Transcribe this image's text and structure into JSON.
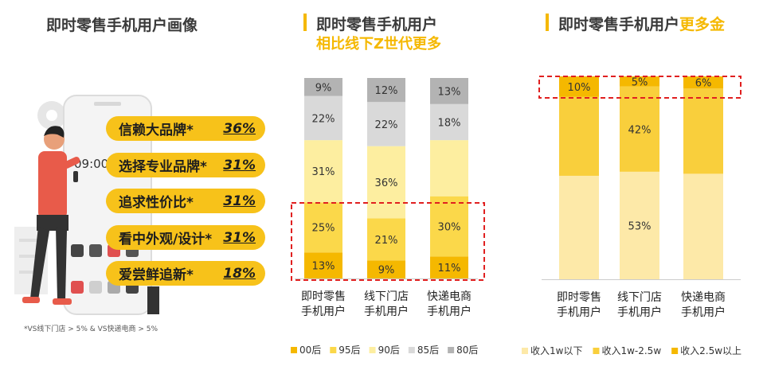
{
  "panel1": {
    "title": "即时零售手机用户画像",
    "phone_time": "09:00",
    "traits": [
      {
        "label": "信赖大品牌*",
        "pct": "36%"
      },
      {
        "label": "选择专业品牌*",
        "pct": "31%"
      },
      {
        "label": "追求性价比*",
        "pct": "31%"
      },
      {
        "label": "看中外观/设计*",
        "pct": "31%"
      },
      {
        "label": "爱尝鲜追新*",
        "pct": "18%"
      }
    ],
    "footnote": "*VS线下门店 > 5% & VS快递电商 > 5%"
  },
  "chart_data": [
    {
      "type": "bar",
      "stacked": true,
      "normalized": true,
      "title": "即时零售手机用户",
      "subtitle": "相比线下Z世代更多",
      "categories": [
        "即时零售\n手机用户",
        "线下门店\n手机用户",
        "快递电商\n手机用户"
      ],
      "series": [
        {
          "name": "00后",
          "color": "#f5b800",
          "values": [
            13,
            9,
            11
          ]
        },
        {
          "name": "95后",
          "color": "#fbd84a",
          "values": [
            25,
            21,
            30
          ]
        },
        {
          "name": "90后",
          "color": "#fdeea0",
          "values": [
            31,
            36,
            28
          ]
        },
        {
          "name": "85后",
          "color": "#d9d9d9",
          "values": [
            22,
            22,
            18
          ]
        },
        {
          "name": "80后",
          "color": "#b3b3b3",
          "values": [
            9,
            12,
            13
          ]
        }
      ],
      "data_labels": [
        [
          "13%",
          "9%",
          "11%"
        ],
        [
          "25%",
          "21%",
          "30%"
        ],
        [
          "31%",
          "36%",
          ""
        ],
        [
          "22%",
          "22%",
          "18%"
        ],
        [
          "9%",
          "12%",
          "13%"
        ]
      ],
      "legend": "bottom",
      "highlight": "00后+95后"
    },
    {
      "type": "bar",
      "stacked": true,
      "normalized": true,
      "title_main": "即时零售手机用户",
      "title_highlight": "更多金",
      "categories": [
        "即时零售\n手机用户",
        "线下门店\n手机用户",
        "快递电商\n手机用户"
      ],
      "series": [
        {
          "name": "收入1w以下",
          "color": "#fde9a8",
          "values": [
            51,
            53,
            52
          ]
        },
        {
          "name": "收入1w-2.5w",
          "color": "#f9cf3c",
          "values": [
            39,
            42,
            42
          ]
        },
        {
          "name": "收入2.5w以上",
          "color": "#f5b800",
          "values": [
            10,
            5,
            6
          ]
        }
      ],
      "data_labels": [
        [
          "",
          "53%",
          ""
        ],
        [
          "",
          "42%",
          ""
        ],
        [
          "10%",
          "5%",
          "6%"
        ]
      ],
      "legend": "bottom",
      "highlight": "收入2.5w以上"
    }
  ]
}
